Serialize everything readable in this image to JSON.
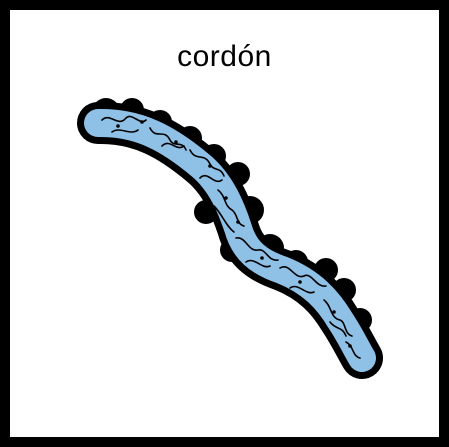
{
  "card": {
    "word": "cordón"
  },
  "pictogram": {
    "icon": "cord-strand-icon",
    "fill_color": "#8fc0e6",
    "outline_color": "#000000"
  }
}
